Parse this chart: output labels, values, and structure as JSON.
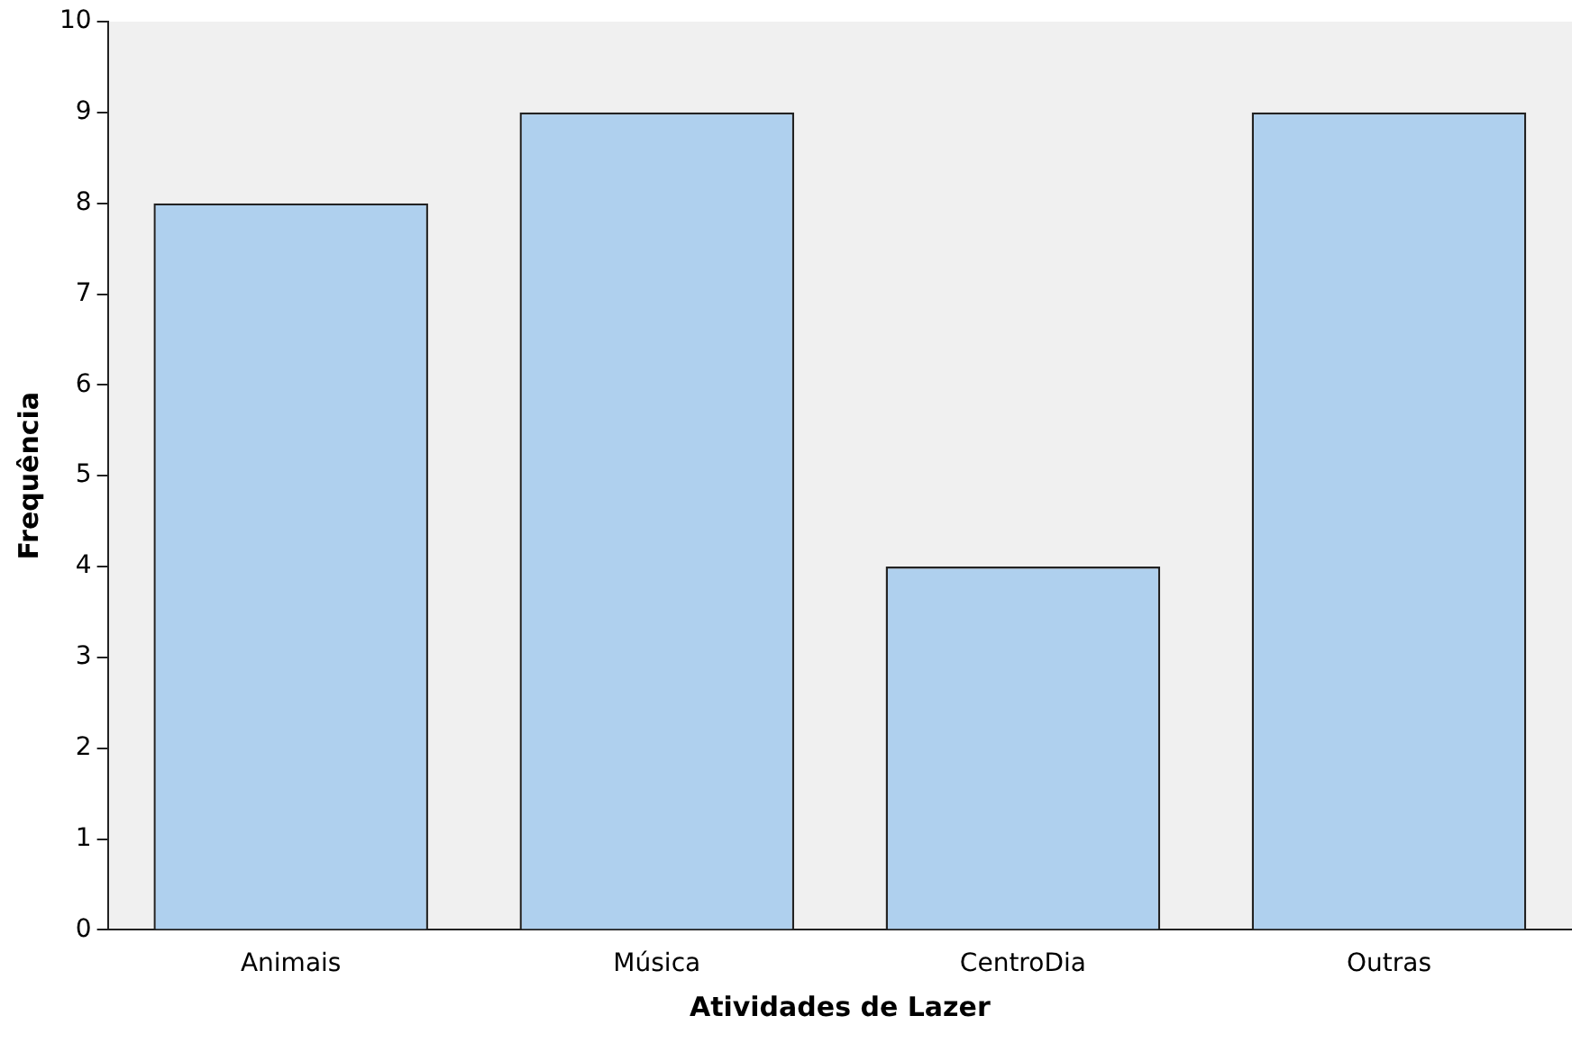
{
  "chart_data": {
    "type": "bar",
    "xlabel": "Atividades de Lazer",
    "ylabel": "Frequência",
    "categories": [
      "Animais",
      "Música",
      "CentroDia",
      "Outras"
    ],
    "values": [
      8,
      9,
      4,
      9
    ],
    "color": "#afd0ee",
    "ylim": [
      0,
      10
    ],
    "yticks": [
      0,
      1,
      2,
      3,
      4,
      5,
      6,
      7,
      8,
      9,
      10
    ],
    "grid": false,
    "legend": false
  }
}
